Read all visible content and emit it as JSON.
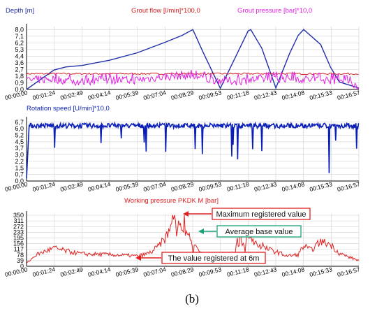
{
  "colors": {
    "depth": "#1f2fa8",
    "flow": "#d42020",
    "pressure": "#e020e0",
    "rotation": "#0a1fb8",
    "working": "#e02020",
    "grid": "#d8d8d8",
    "axis": "#000000",
    "arrow_red": "#e02020",
    "arrow_green": "#1aa07a"
  },
  "caption": "(b)",
  "chart_data": [
    {
      "type": "line",
      "legend": [
        "Depth [m]",
        "Grout flow  [l/min]*100,0",
        "Grout pressure [bar]*10,0"
      ],
      "grid": true,
      "x_ticks": [
        "00:00:00",
        "00:01:24",
        "00:02:49",
        "00:04:14",
        "00:05:39",
        "00:07:04",
        "00:08:29",
        "00:09:53",
        "00:11:18",
        "00:12:43",
        "00:14:08",
        "00:15:33",
        "00:16:57"
      ],
      "y_ticks": [
        "0,0",
        "0,9",
        "1,8",
        "2,7",
        "3,6",
        "4,4",
        "5,3",
        "6,2",
        "7,1",
        "8,0"
      ],
      "ylim": [
        0,
        8.4
      ],
      "series": [
        {
          "name": "Depth [m]",
          "style": "smooth",
          "x": [
            0,
            84,
            120,
            169,
            254,
            339,
            424,
            475,
            509,
            540,
            593,
            678,
            686,
            720,
            763,
            805,
            831,
            848,
            900,
            930,
            957,
            1017
          ],
          "y": [
            0,
            2.6,
            3.0,
            3.2,
            3.9,
            4.9,
            6.3,
            7.2,
            8.0,
            5.0,
            0.15,
            7.8,
            8.0,
            5.5,
            0.2,
            4.8,
            7.2,
            8.0,
            6.0,
            3.0,
            1.0,
            0.2
          ]
        },
        {
          "name": "Grout flow [l/min]*100,0",
          "style": "flat",
          "x": [
            0,
            1017
          ],
          "y": [
            2.1,
            2.1
          ]
        },
        {
          "name": "Grout pressure [bar]*10,0",
          "style": "noisy",
          "x": [
            0,
            80,
            160,
            240,
            320,
            400,
            480,
            560,
            640,
            720,
            800,
            880,
            960,
            1017
          ],
          "y": [
            1.2,
            1.4,
            1.0,
            1.3,
            1.2,
            1.6,
            1.9,
            1.3,
            1.1,
            1.4,
            1.5,
            1.3,
            1.2,
            0.5
          ]
        }
      ]
    },
    {
      "type": "line",
      "legend": [
        "Rotation speed  [U/min]*10,0"
      ],
      "grid": true,
      "x_ticks": [
        "00:00:00",
        "00:01:24",
        "00:02:49",
        "00:04:14",
        "00:05:39",
        "00:07:04",
        "00:08:29",
        "00:09:53",
        "00:11:18",
        "00:12:43",
        "00:14:08",
        "00:15:33",
        "00:16:57"
      ],
      "y_ticks": [
        "0,0",
        "0,7",
        "1,5",
        "2,2",
        "3,0",
        "3,7",
        "4,5",
        "5,2",
        "6,0",
        "6,7"
      ],
      "ylim": [
        0,
        7.0
      ],
      "series": [
        {
          "name": "Rotation speed [U/min]*10,0",
          "style": "noisy",
          "x": [
            0,
            8,
            20,
            100,
            200,
            300,
            400,
            500,
            600,
            700,
            800,
            900,
            1000,
            1017
          ],
          "y": [
            0.5,
            6.3,
            6.3,
            6.3,
            6.3,
            6.3,
            6.3,
            6.3,
            6.3,
            6.3,
            6.3,
            6.3,
            6.3,
            6.3
          ]
        }
      ]
    },
    {
      "type": "line",
      "legend": [
        "Working pressure PKDK M [bar]"
      ],
      "grid": true,
      "x_ticks": [
        "00:00:00",
        "00:01:24",
        "00:02:49",
        "00:04:14",
        "00:05:39",
        "00:07:04",
        "00:08:29",
        "00:09:53",
        "00:11:18",
        "00:12:43",
        "00:14:08",
        "00:15:33",
        "00:16:57"
      ],
      "y_ticks": [
        "0",
        "39",
        "78",
        "117",
        "156",
        "195",
        "233",
        "272",
        "311",
        "350"
      ],
      "ylim": [
        0,
        360
      ],
      "annotations": [
        {
          "text": "Maximum registered value",
          "x": 451,
          "y": 350,
          "color": "red"
        },
        {
          "text": "Average base value",
          "x": 461,
          "y": 272,
          "color": "green"
        },
        {
          "text": "The value registered at 6m",
          "x": 339,
          "y": 117,
          "color": "red"
        }
      ],
      "series": [
        {
          "name": "Working pressure PKDK M [bar]",
          "style": "noisy",
          "x": [
            0,
            30,
            84,
            120,
            170,
            254,
            300,
            339,
            360,
            380,
            400,
            420,
            440,
            451,
            470,
            490,
            510,
            540,
            593,
            630,
            660,
            686,
            720,
            763,
            800,
            831,
            848,
            870,
            900,
            930,
            957,
            990,
            1017
          ],
          "y": [
            20,
            80,
            125,
            105,
            85,
            80,
            75,
            70,
            80,
            95,
            130,
            180,
            240,
            350,
            290,
            230,
            150,
            80,
            70,
            90,
            160,
            190,
            130,
            100,
            70,
            80,
            140,
            110,
            170,
            150,
            90,
            60,
            40
          ]
        }
      ]
    }
  ]
}
